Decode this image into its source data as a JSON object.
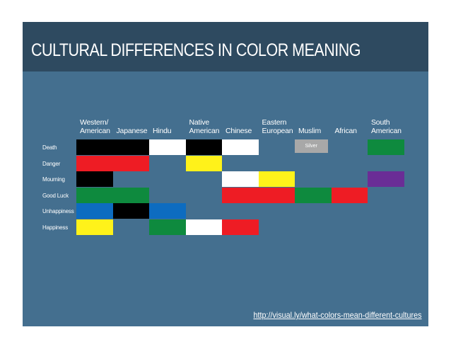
{
  "title": "CULTURAL DIFFERENCES IN COLOR MEANING",
  "link": "http://visual.ly/what-colors-mean-different-cultures",
  "columns": [
    "Western/\nAmerican",
    "Japanese",
    "Hindu",
    "Native\nAmerican",
    "Chinese",
    "Eastern\nEuropean",
    "Muslim",
    "African",
    "South\nAmerican"
  ],
  "rows": [
    {
      "label": "Death",
      "cells": [
        {
          "col": 0,
          "span": 2,
          "color": "#000000"
        },
        {
          "col": 2,
          "span": 1,
          "color": "#ffffff"
        },
        {
          "col": 3,
          "span": 1,
          "color": "#000000"
        },
        {
          "col": 4,
          "span": 1,
          "color": "#ffffff"
        },
        {
          "col": 6,
          "span": 1,
          "color": "#a8a8a8",
          "text": "Silver"
        },
        {
          "col": 8,
          "span": 1,
          "color": "#0e8a3e"
        }
      ]
    },
    {
      "label": "Danger",
      "cells": [
        {
          "col": 0,
          "span": 2,
          "color": "#ee1c24"
        },
        {
          "col": 3,
          "span": 1,
          "color": "#fff21a"
        }
      ]
    },
    {
      "label": "Mourning",
      "cells": [
        {
          "col": 0,
          "span": 1,
          "color": "#000000"
        },
        {
          "col": 4,
          "span": 1,
          "color": "#ffffff"
        },
        {
          "col": 5,
          "span": 1,
          "color": "#fff21a"
        },
        {
          "col": 8,
          "span": 1,
          "color": "#6a2d96"
        }
      ]
    },
    {
      "label": "Good Luck",
      "cells": [
        {
          "col": 0,
          "span": 2,
          "color": "#0e8a3e"
        },
        {
          "col": 4,
          "span": 2,
          "color": "#ee1c24"
        },
        {
          "col": 6,
          "span": 1,
          "color": "#0e8a3e"
        },
        {
          "col": 7,
          "span": 1,
          "color": "#ee1c24"
        }
      ]
    },
    {
      "label": "Unhappiness",
      "cells": [
        {
          "col": 0,
          "span": 1,
          "color": "#0d6cc0"
        },
        {
          "col": 1,
          "span": 1,
          "color": "#000000"
        },
        {
          "col": 2,
          "span": 1,
          "color": "#0d6cc0"
        }
      ]
    },
    {
      "label": "Happiness",
      "cells": [
        {
          "col": 0,
          "span": 1,
          "color": "#fff21a"
        },
        {
          "col": 2,
          "span": 1,
          "color": "#0e8a3e"
        },
        {
          "col": 3,
          "span": 1,
          "color": "#ffffff"
        },
        {
          "col": 4,
          "span": 1,
          "color": "#ee1c24"
        }
      ]
    }
  ]
}
